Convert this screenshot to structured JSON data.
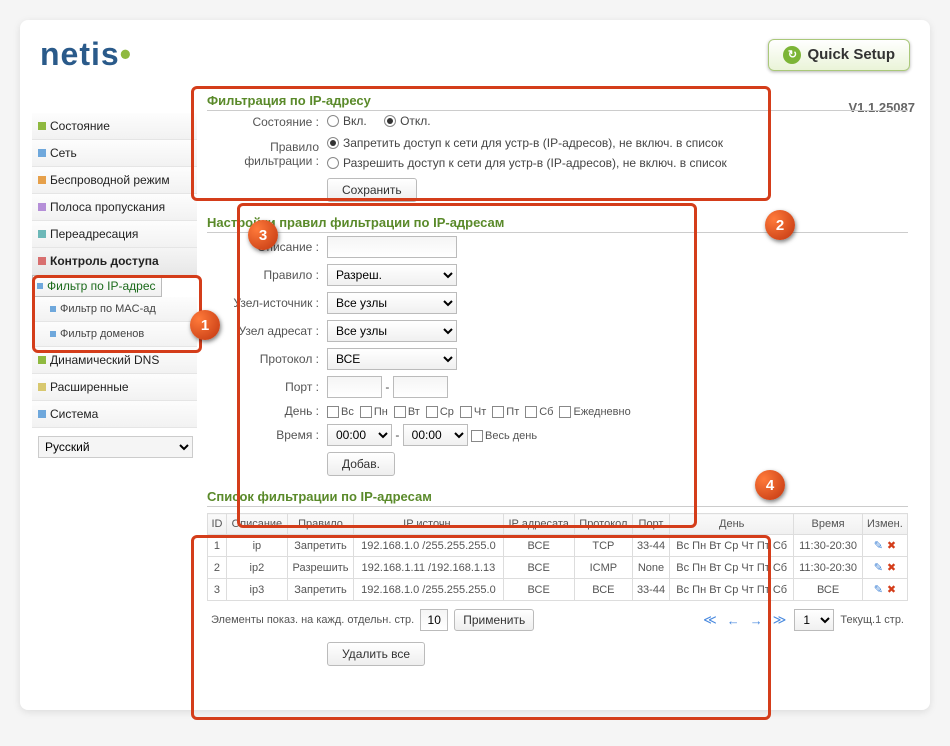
{
  "header": {
    "logo": "netis",
    "quick_setup": "Quick Setup",
    "version": "V1.1.25087"
  },
  "sidebar": {
    "items": [
      {
        "label": "Состояние",
        "ico": "sq-g"
      },
      {
        "label": "Сеть",
        "ico": "sq-b"
      },
      {
        "label": "Беспроводной режим",
        "ico": "sq-o"
      },
      {
        "label": "Полоса пропускания",
        "ico": "sq-p"
      },
      {
        "label": "Переадресация",
        "ico": "sq-t"
      },
      {
        "label": "Контроль доступа",
        "ico": "sq-r",
        "active": true
      },
      {
        "label": "Динамический DNS",
        "ico": "sq-g"
      },
      {
        "label": "Расширенные",
        "ico": "sq-y"
      },
      {
        "label": "Система",
        "ico": "sq-b"
      }
    ],
    "subitems": [
      {
        "label": "Фильтр по IP-адрес",
        "sel": true
      },
      {
        "label": "Фильтр по MAC-ад"
      },
      {
        "label": "Фильтр доменов"
      }
    ],
    "language": "Русский"
  },
  "sec1": {
    "title": "Фильтрация по IP-адресу",
    "state_label": "Состояние :",
    "on": "Вкл.",
    "off": "Откл.",
    "rule_label": "Правило фильтрации :",
    "rule_deny": "Запретить доступ к сети для устр-в (IP-адресов), не включ. в список",
    "rule_allow": "Разрешить доступ к сети для устр-в (IP-адресов), не включ. в список",
    "save": "Сохранить"
  },
  "sec2": {
    "title": "Настройки правил фильтрации по IP-адресам",
    "desc": "Описание :",
    "rule": "Правило :",
    "rule_v": "Разреш.",
    "src": "Узел-источник :",
    "src_v": "Все узлы",
    "dst": "Узел адресат :",
    "dst_v": "Все узлы",
    "proto": "Протокол :",
    "proto_v": "ВСЕ",
    "port": "Порт :",
    "day": "День :",
    "days": [
      "Вс",
      "Пн",
      "Вт",
      "Ср",
      "Чт",
      "Пт",
      "Сб"
    ],
    "daily": "Ежедневно",
    "time": "Время :",
    "t1": "00:00",
    "t2": "00:00",
    "allday": "Весь день",
    "add": "Добав."
  },
  "sec3": {
    "title": "Список фильтрации по IP-адресам",
    "cols": [
      "ID",
      "Описание",
      "Правило",
      "IP источн.",
      "IP адресата",
      "Протокол",
      "Порт",
      "День",
      "Время",
      "Измен."
    ],
    "rows": [
      {
        "id": "1",
        "d": "ip",
        "r": "Запретить",
        "s": "192.168.1.0 /255.255.255.0",
        "t": "ВСЕ",
        "p": "TCP",
        "po": "33-44",
        "dy": "Вс Пн Вт Ср Чт Пт Сб",
        "tm": "11:30-20:30"
      },
      {
        "id": "2",
        "d": "ip2",
        "r": "Разрешить",
        "s": "192.168.1.11 /192.168.1.13",
        "t": "ВСЕ",
        "p": "ICMP",
        "po": "None",
        "dy": "Вс Пн Вт Ср Чт Пт Сб",
        "tm": "11:30-20:30"
      },
      {
        "id": "3",
        "d": "ip3",
        "r": "Запретить",
        "s": "192.168.1.0 /255.255.255.0",
        "t": "ВСЕ",
        "p": "ВСЕ",
        "po": "33-44",
        "dy": "Вс Пн Вт Ср Чт Пт Сб",
        "tm": "ВСЕ"
      }
    ],
    "pager_label": "Элементы показ. на кажд. отдельн. стр.",
    "per_page": "10",
    "apply": "Применить",
    "page": "1",
    "cur": "Текущ.1 стр.",
    "delete_all": "Удалить все"
  }
}
